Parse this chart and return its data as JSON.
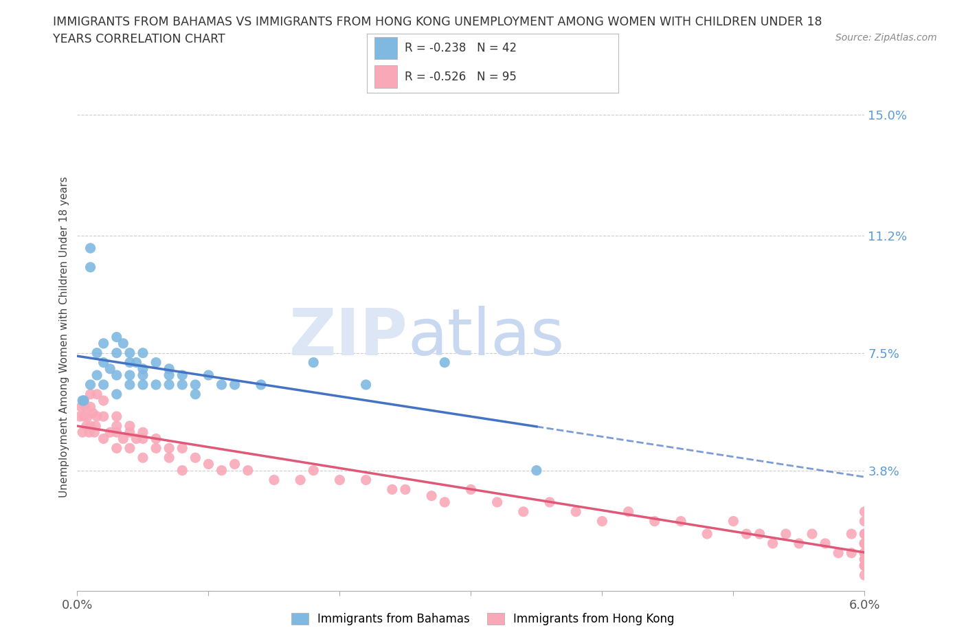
{
  "title_line1": "IMMIGRANTS FROM BAHAMAS VS IMMIGRANTS FROM HONG KONG UNEMPLOYMENT AMONG WOMEN WITH CHILDREN UNDER 18",
  "title_line2": "YEARS CORRELATION CHART",
  "source_text": "Source: ZipAtlas.com",
  "ylabel": "Unemployment Among Women with Children Under 18 years",
  "xmin": 0.0,
  "xmax": 0.06,
  "ymin": 0.0,
  "ymax": 0.16,
  "yticks": [
    0.038,
    0.075,
    0.112,
    0.15
  ],
  "ytick_labels": [
    "3.8%",
    "7.5%",
    "11.2%",
    "15.0%"
  ],
  "xticks": [
    0.0,
    0.01,
    0.02,
    0.03,
    0.04,
    0.05,
    0.06
  ],
  "xtick_labels": [
    "0.0%",
    "",
    "",
    "",
    "",
    "",
    "6.0%"
  ],
  "color_bahamas": "#7fb8e0",
  "color_hong_kong": "#f9a8b8",
  "color_trend_bahamas": "#4472c4",
  "color_trend_hong_kong": "#e05878",
  "background_color": "#ffffff",
  "grid_color": "#cccccc",
  "watermark_color": "#dce6f5",
  "bahamas_x": [
    0.0005,
    0.001,
    0.001,
    0.001,
    0.0015,
    0.0015,
    0.002,
    0.002,
    0.002,
    0.0025,
    0.003,
    0.003,
    0.003,
    0.003,
    0.0035,
    0.004,
    0.004,
    0.004,
    0.004,
    0.0045,
    0.005,
    0.005,
    0.005,
    0.005,
    0.006,
    0.006,
    0.007,
    0.007,
    0.007,
    0.008,
    0.008,
    0.009,
    0.009,
    0.01,
    0.011,
    0.012,
    0.014,
    0.018,
    0.022,
    0.028,
    0.035,
    0.0004
  ],
  "bahamas_y": [
    0.06,
    0.108,
    0.102,
    0.065,
    0.075,
    0.068,
    0.078,
    0.072,
    0.065,
    0.07,
    0.08,
    0.075,
    0.068,
    0.062,
    0.078,
    0.072,
    0.065,
    0.075,
    0.068,
    0.072,
    0.075,
    0.07,
    0.065,
    0.068,
    0.072,
    0.065,
    0.07,
    0.065,
    0.068,
    0.065,
    0.068,
    0.065,
    0.062,
    0.068,
    0.065,
    0.065,
    0.065,
    0.072,
    0.065,
    0.072,
    0.038,
    0.06
  ],
  "hong_kong_x": [
    0.0002,
    0.0003,
    0.0004,
    0.0005,
    0.0005,
    0.0006,
    0.0007,
    0.0008,
    0.0009,
    0.001,
    0.001,
    0.001,
    0.0012,
    0.0013,
    0.0014,
    0.0015,
    0.0015,
    0.002,
    0.002,
    0.002,
    0.0025,
    0.003,
    0.003,
    0.003,
    0.003,
    0.0035,
    0.004,
    0.004,
    0.004,
    0.0045,
    0.005,
    0.005,
    0.005,
    0.006,
    0.006,
    0.007,
    0.007,
    0.008,
    0.008,
    0.009,
    0.01,
    0.011,
    0.012,
    0.013,
    0.015,
    0.017,
    0.018,
    0.02,
    0.022,
    0.024,
    0.025,
    0.027,
    0.028,
    0.03,
    0.032,
    0.034,
    0.036,
    0.038,
    0.04,
    0.042,
    0.044,
    0.046,
    0.048,
    0.05,
    0.051,
    0.052,
    0.053,
    0.054,
    0.055,
    0.056,
    0.057,
    0.058,
    0.059,
    0.059,
    0.06,
    0.06,
    0.06,
    0.06,
    0.06,
    0.06,
    0.06,
    0.06,
    0.06,
    0.06,
    0.06,
    0.06,
    0.06,
    0.06,
    0.06,
    0.06,
    0.06,
    0.06,
    0.06,
    0.06,
    0.06
  ],
  "hong_kong_y": [
    0.055,
    0.058,
    0.05,
    0.06,
    0.055,
    0.058,
    0.052,
    0.055,
    0.05,
    0.062,
    0.058,
    0.052,
    0.056,
    0.05,
    0.052,
    0.055,
    0.062,
    0.06,
    0.055,
    0.048,
    0.05,
    0.055,
    0.05,
    0.045,
    0.052,
    0.048,
    0.05,
    0.045,
    0.052,
    0.048,
    0.048,
    0.042,
    0.05,
    0.045,
    0.048,
    0.045,
    0.042,
    0.045,
    0.038,
    0.042,
    0.04,
    0.038,
    0.04,
    0.038,
    0.035,
    0.035,
    0.038,
    0.035,
    0.035,
    0.032,
    0.032,
    0.03,
    0.028,
    0.032,
    0.028,
    0.025,
    0.028,
    0.025,
    0.022,
    0.025,
    0.022,
    0.022,
    0.018,
    0.022,
    0.018,
    0.018,
    0.015,
    0.018,
    0.015,
    0.018,
    0.015,
    0.012,
    0.018,
    0.012,
    0.015,
    0.018,
    0.012,
    0.022,
    0.015,
    0.008,
    0.012,
    0.018,
    0.015,
    0.025,
    0.01,
    0.012,
    0.008,
    0.015,
    0.012,
    0.005,
    0.01,
    0.008,
    0.015,
    0.012,
    0.008
  ]
}
